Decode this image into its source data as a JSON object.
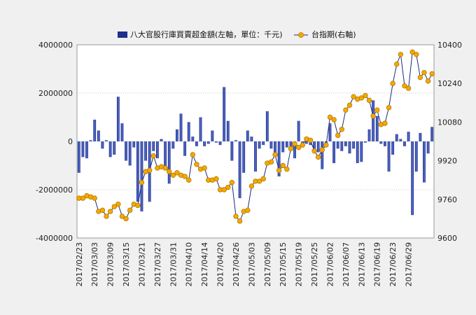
{
  "chart_data": {
    "type": "bar+line",
    "legend": {
      "bar_label": "八大官股行庫買賣超金額(左軸，單位：千元)",
      "line_label": "台指期(右軸)",
      "position": "top"
    },
    "colors": {
      "bar_dark": "#14237a",
      "bar_light": "#5d78dc",
      "line": "#1a2a7a",
      "marker": "#f5a800",
      "marker_edge": "#b07a00",
      "grid": "#c8c8c8"
    },
    "y_left": {
      "min": -4000000,
      "max": 4000000,
      "ticks": [
        "4000000",
        "2000000",
        "0",
        "-2000000",
        "-4000000"
      ]
    },
    "y_right": {
      "min": 9600,
      "max": 10400,
      "ticks": [
        "10400",
        "10240",
        "10080",
        "9920",
        "9760",
        "9600"
      ]
    },
    "x_tick_labels": [
      "2017/02/23",
      "2017/03/03",
      "2017/03/09",
      "2017/03/15",
      "2017/03/21",
      "2017/03/27",
      "2017/03/31",
      "2017/04/10",
      "2017/04/14",
      "2017/04/20",
      "2017/04/26",
      "2017/05/03",
      "2017/05/09",
      "2017/05/15",
      "2017/05/19",
      "2017/05/25",
      "2017/06/02",
      "2017/06/07",
      "2017/06/13",
      "2017/06/19",
      "2017/06/23",
      "2017/06/29"
    ],
    "x_tick_every": 4,
    "bar_values": [
      -1300000,
      -650000,
      -700000,
      50000,
      900000,
      450000,
      -300000,
      50000,
      -650000,
      -550000,
      1850000,
      750000,
      -800000,
      -1000000,
      -250000,
      -2500000,
      -2900000,
      -800000,
      -2500000,
      -400000,
      -700000,
      100000,
      -1150000,
      -1750000,
      -300000,
      500000,
      1150000,
      -600000,
      800000,
      200000,
      -200000,
      1000000,
      -200000,
      -100000,
      450000,
      -50000,
      -150000,
      2250000,
      850000,
      -800000,
      50000,
      -2350000,
      -1300000,
      450000,
      200000,
      -1250000,
      -300000,
      -150000,
      1250000,
      -300000,
      -600000,
      -1450000,
      -450000,
      -250000,
      -250000,
      -700000,
      850000,
      -100000,
      -100000,
      -150000,
      -300000,
      -450000,
      -1150000,
      -200000,
      750000,
      -900000,
      -300000,
      -400000,
      -200000,
      -500000,
      -300000,
      -900000,
      -850000,
      -50000,
      500000,
      1700000,
      1050000,
      -100000,
      -200000,
      -1250000,
      -550000,
      300000,
      100000,
      -200000,
      400000,
      -3050000,
      -1250000,
      350000,
      -1700000,
      -500000,
      600000
    ],
    "line_values": [
      9765,
      9765,
      9775,
      9770,
      9765,
      9710,
      9715,
      9690,
      9710,
      9730,
      9740,
      9690,
      9680,
      9715,
      9740,
      9735,
      9830,
      9875,
      9880,
      9940,
      9890,
      9895,
      9890,
      9875,
      9860,
      9870,
      9860,
      9855,
      9840,
      9945,
      9905,
      9885,
      9890,
      9840,
      9840,
      9845,
      9800,
      9800,
      9810,
      9830,
      9690,
      9670,
      9710,
      9715,
      9815,
      9835,
      9835,
      9845,
      9910,
      9915,
      9945,
      9880,
      9900,
      9885,
      9970,
      9990,
      9975,
      9985,
      10010,
      10005,
      9960,
      9935,
      9965,
      9985,
      10100,
      10090,
      10025,
      10050,
      10130,
      10150,
      10185,
      10175,
      10180,
      10190,
      10170,
      10105,
      10130,
      10070,
      10075,
      10140,
      10240,
      10320,
      10360,
      10230,
      10220,
      10370,
      10360,
      10265,
      10285,
      10250,
      10280
    ]
  }
}
